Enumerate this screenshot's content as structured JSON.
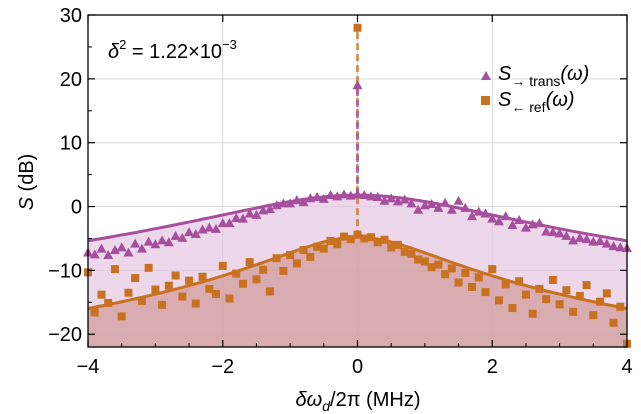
{
  "chart_data": {
    "type": "scatter",
    "xlabel": "δω_d/2π (MHz)",
    "xlabel_parts": {
      "symbol": "δω",
      "sub": "d",
      "rest": "/2π (MHz)"
    },
    "ylabel": "S (dB)",
    "ylabel_parts": {
      "symbol": "S",
      "rest": " (dB)"
    },
    "xlim": [
      -4,
      4
    ],
    "ylim": [
      -22,
      30
    ],
    "xticks": [
      -4,
      -2,
      0,
      2,
      4
    ],
    "xtick_labels": [
      "−4",
      "−2",
      "0",
      "2",
      "4"
    ],
    "yticks": [
      -20,
      -10,
      0,
      10,
      20,
      30
    ],
    "ytick_labels": [
      "−20",
      "−10",
      "0",
      "10",
      "20",
      "30"
    ],
    "grid": true,
    "legend_position": "top-right",
    "annotation": {
      "text": "δ² = 1.22×10⁻³",
      "parts": {
        "base": "δ",
        "exp": "2",
        "mid": " = 1.22×10",
        "exp2": "−3"
      }
    },
    "series": [
      {
        "name": "S→ trans(ω)",
        "label_parts": {
          "main": "S",
          "sub": "→ trans",
          "tail": "(ω)"
        },
        "marker": "triangle",
        "color": "#A64F9E",
        "fill": "#E6C6E2",
        "fit_peak_db": 1.8,
        "fit_halfwidth_mhz": 1.95,
        "spike_top_db": 19,
        "x": [
          -4.0,
          -3.9,
          -3.8,
          -3.7,
          -3.6,
          -3.5,
          -3.4,
          -3.3,
          -3.2,
          -3.1,
          -3.0,
          -2.9,
          -2.8,
          -2.7,
          -2.6,
          -2.5,
          -2.4,
          -2.3,
          -2.2,
          -2.1,
          -2.0,
          -1.9,
          -1.8,
          -1.7,
          -1.6,
          -1.5,
          -1.4,
          -1.3,
          -1.2,
          -1.1,
          -1.0,
          -0.9,
          -0.8,
          -0.7,
          -0.6,
          -0.5,
          -0.4,
          -0.3,
          -0.2,
          -0.1,
          0.0,
          0.1,
          0.2,
          0.3,
          0.4,
          0.5,
          0.6,
          0.7,
          0.8,
          0.9,
          1.0,
          1.1,
          1.2,
          1.3,
          1.4,
          1.5,
          1.6,
          1.7,
          1.8,
          1.9,
          2.0,
          2.1,
          2.2,
          2.3,
          2.4,
          2.5,
          2.6,
          2.7,
          2.8,
          2.9,
          3.0,
          3.1,
          3.2,
          3.3,
          3.4,
          3.5,
          3.6,
          3.7,
          3.8,
          3.9,
          4.0
        ],
        "y": [
          -7.2,
          -7.5,
          -6.6,
          -7.6,
          -6.8,
          -6.4,
          -7.2,
          -5.8,
          -6.6,
          -5.5,
          -5.9,
          -5.3,
          -5.6,
          -4.6,
          -4.9,
          -4.0,
          -4.3,
          -3.6,
          -3.3,
          -3.5,
          -2.6,
          -2.6,
          -1.8,
          -1.9,
          -1.1,
          -1.3,
          -0.6,
          -0.4,
          0.2,
          0.5,
          0.5,
          1.0,
          0.7,
          1.3,
          1.5,
          1.2,
          1.8,
          1.6,
          1.9,
          1.7,
          1.9,
          1.8,
          1.6,
          1.5,
          0.9,
          1.3,
          0.8,
          1.1,
          0.5,
          -0.5,
          0.2,
          0.4,
          -0.2,
          0.6,
          -0.5,
          0.9,
          -0.2,
          -1.5,
          -0.8,
          -1.1,
          -1.9,
          -2.3,
          -1.5,
          -2.9,
          -2.1,
          -3.3,
          -2.8,
          -2.6,
          -3.9,
          -4.0,
          -4.2,
          -4.6,
          -5.3,
          -4.9,
          -5.1,
          -5.5,
          -5.4,
          -5.8,
          -6.2,
          -6.4,
          -6.5
        ]
      },
      {
        "name": "S← ref(ω)",
        "label_parts": {
          "main": "S",
          "sub": "← ref",
          "tail": "(ω)"
        },
        "marker": "square",
        "color": "#C8711F",
        "fill": "#D09A99",
        "fit_peak_db": -4.8,
        "fit_halfwidth_mhz": 1.15,
        "spike_top_db": 28,
        "x": [
          -4.0,
          -3.9,
          -3.8,
          -3.7,
          -3.6,
          -3.5,
          -3.4,
          -3.3,
          -3.2,
          -3.1,
          -3.0,
          -2.9,
          -2.8,
          -2.7,
          -2.6,
          -2.5,
          -2.4,
          -2.3,
          -2.2,
          -2.1,
          -2.0,
          -1.9,
          -1.8,
          -1.7,
          -1.6,
          -1.5,
          -1.4,
          -1.3,
          -1.2,
          -1.1,
          -1.0,
          -0.9,
          -0.8,
          -0.7,
          -0.6,
          -0.5,
          -0.4,
          -0.3,
          -0.2,
          -0.1,
          0.0,
          0.1,
          0.2,
          0.3,
          0.4,
          0.5,
          0.6,
          0.7,
          0.8,
          0.9,
          1.0,
          1.1,
          1.2,
          1.3,
          1.4,
          1.5,
          1.6,
          1.7,
          1.8,
          1.9,
          2.0,
          2.1,
          2.2,
          2.3,
          2.4,
          2.5,
          2.6,
          2.7,
          2.8,
          2.9,
          3.0,
          3.1,
          3.2,
          3.3,
          3.4,
          3.5,
          3.6,
          3.7,
          3.8,
          3.9,
          4.0
        ],
        "y": [
          -10.3,
          -16.6,
          -13.8,
          -15.1,
          -9.8,
          -17.2,
          -13.5,
          -11.2,
          -14.8,
          -9.6,
          -13.0,
          -15.4,
          -12.4,
          -10.8,
          -14.1,
          -11.6,
          -15.2,
          -11.0,
          -12.9,
          -13.7,
          -9.3,
          -14.4,
          -10.5,
          -12.1,
          -8.7,
          -11.4,
          -9.9,
          -13.3,
          -8.1,
          -10.1,
          -7.6,
          -8.9,
          -6.8,
          -7.9,
          -6.3,
          -6.6,
          -5.4,
          -5.9,
          -4.7,
          -5.1,
          -4.4,
          -5.0,
          -4.8,
          -5.6,
          -5.2,
          -6.4,
          -6.0,
          -7.1,
          -7.4,
          -8.3,
          -8.6,
          -9.5,
          -9.1,
          -10.6,
          -9.7,
          -11.9,
          -10.4,
          -12.6,
          -11.1,
          -13.4,
          -9.8,
          -14.7,
          -12.2,
          -15.9,
          -11.7,
          -13.8,
          -16.8,
          -12.9,
          -14.5,
          -11.5,
          -15.3,
          -13.1,
          -16.5,
          -14.0,
          -12.3,
          -17.0,
          -14.9,
          -13.6,
          -18.2,
          -15.7,
          -21.5
        ]
      }
    ]
  }
}
